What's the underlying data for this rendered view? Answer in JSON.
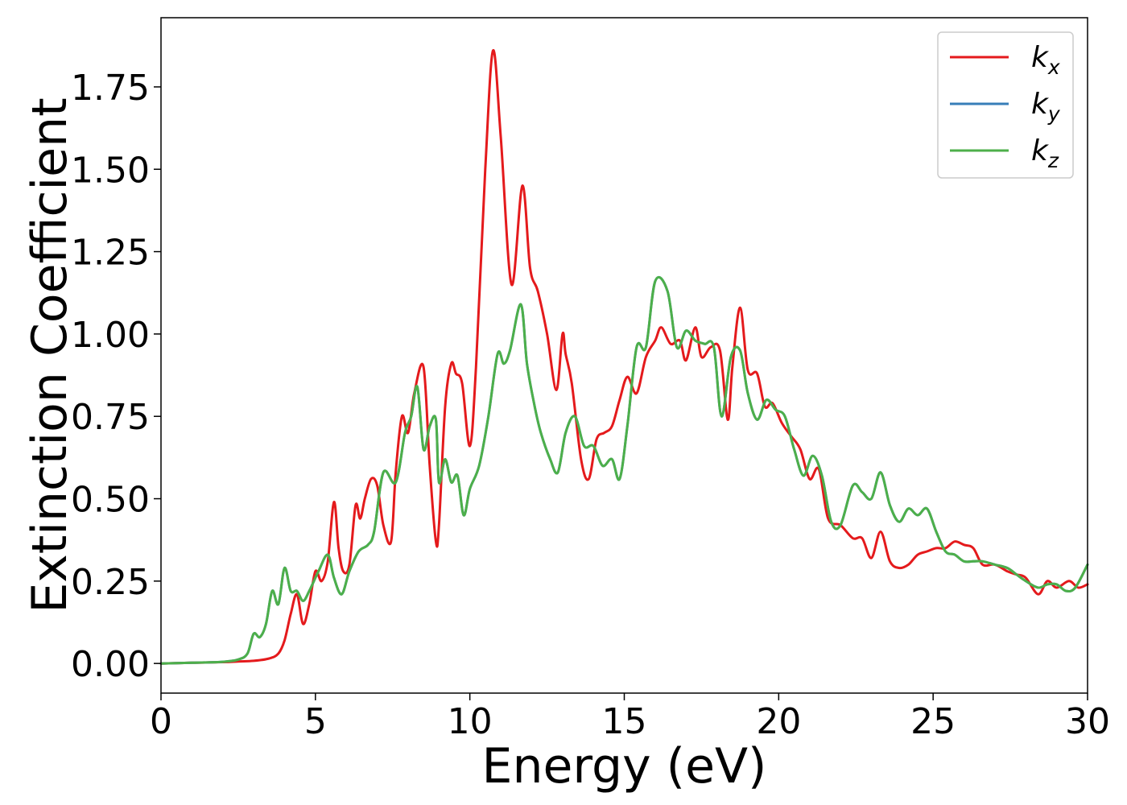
{
  "chart_data": {
    "type": "line",
    "title": "",
    "xlabel": "Energy (eV)",
    "ylabel": "Extinction Coefficient",
    "xlim": [
      0,
      30
    ],
    "ylim": [
      -0.09,
      1.96
    ],
    "xticks": [
      0,
      5,
      10,
      15,
      20,
      25,
      30
    ],
    "xtick_labels": [
      "0",
      "5",
      "10",
      "15",
      "20",
      "25",
      "30"
    ],
    "yticks": [
      0.0,
      0.25,
      0.5,
      0.75,
      1.0,
      1.25,
      1.5,
      1.75
    ],
    "ytick_labels": [
      "0.00",
      "0.25",
      "0.50",
      "0.75",
      "1.00",
      "1.25",
      "1.50",
      "1.75"
    ],
    "grid": false,
    "legend_position": "top-right",
    "series": [
      {
        "name": "k_x",
        "label_base": "k",
        "label_sub": "x",
        "color": "#e41a1c",
        "x": [
          0,
          1,
          2,
          2.5,
          3,
          3.5,
          3.8,
          4.0,
          4.2,
          4.4,
          4.6,
          4.8,
          5.0,
          5.2,
          5.4,
          5.6,
          5.75,
          5.9,
          6.1,
          6.3,
          6.45,
          6.6,
          6.8,
          7.0,
          7.2,
          7.45,
          7.6,
          7.8,
          8.0,
          8.2,
          8.5,
          8.7,
          8.9,
          9.0,
          9.2,
          9.4,
          9.55,
          9.75,
          10.0,
          10.2,
          10.5,
          10.75,
          11.0,
          11.35,
          11.7,
          11.95,
          12.2,
          12.5,
          12.8,
          13.0,
          13.1,
          13.3,
          13.6,
          13.85,
          14.1,
          14.35,
          14.6,
          14.85,
          15.1,
          15.4,
          15.7,
          16.0,
          16.2,
          16.5,
          16.8,
          17.0,
          17.3,
          17.5,
          17.8,
          18.1,
          18.35,
          18.5,
          18.75,
          19.0,
          19.3,
          19.55,
          19.8,
          20.1,
          20.4,
          20.7,
          21.0,
          21.3,
          21.6,
          22.0,
          22.4,
          22.7,
          23.0,
          23.3,
          23.6,
          23.9,
          24.2,
          24.5,
          24.8,
          25.1,
          25.4,
          25.7,
          26.0,
          26.3,
          26.6,
          27.0,
          27.4,
          27.7,
          28.0,
          28.4,
          28.7,
          29.0,
          29.4,
          29.7,
          30.0
        ],
        "y": [
          0.0,
          0.002,
          0.004,
          0.006,
          0.008,
          0.015,
          0.03,
          0.07,
          0.15,
          0.21,
          0.12,
          0.18,
          0.28,
          0.25,
          0.31,
          0.49,
          0.35,
          0.28,
          0.3,
          0.48,
          0.44,
          0.5,
          0.56,
          0.54,
          0.42,
          0.37,
          0.58,
          0.75,
          0.7,
          0.82,
          0.9,
          0.6,
          0.37,
          0.42,
          0.78,
          0.91,
          0.88,
          0.85,
          0.66,
          0.9,
          1.5,
          1.86,
          1.6,
          1.15,
          1.45,
          1.2,
          1.13,
          1.0,
          0.83,
          1.0,
          0.94,
          0.85,
          0.62,
          0.56,
          0.68,
          0.7,
          0.72,
          0.8,
          0.87,
          0.82,
          0.93,
          0.98,
          1.02,
          0.97,
          0.98,
          0.92,
          1.02,
          0.93,
          0.96,
          0.95,
          0.74,
          0.9,
          1.08,
          0.89,
          0.88,
          0.78,
          0.79,
          0.73,
          0.69,
          0.65,
          0.56,
          0.59,
          0.44,
          0.42,
          0.38,
          0.38,
          0.32,
          0.4,
          0.31,
          0.29,
          0.3,
          0.33,
          0.34,
          0.35,
          0.35,
          0.37,
          0.36,
          0.35,
          0.3,
          0.3,
          0.28,
          0.27,
          0.26,
          0.21,
          0.25,
          0.23,
          0.25,
          0.23,
          0.24
        ]
      },
      {
        "name": "k_y",
        "label_base": "k",
        "label_sub": "y",
        "color": "#377eb8",
        "x": [
          0,
          1,
          2,
          2.5,
          2.8,
          3.0,
          3.2,
          3.4,
          3.6,
          3.8,
          4.0,
          4.2,
          4.4,
          4.6,
          4.8,
          5.1,
          5.4,
          5.6,
          5.85,
          6.1,
          6.4,
          6.7,
          6.9,
          7.2,
          7.6,
          7.9,
          8.1,
          8.3,
          8.5,
          8.7,
          8.9,
          9.0,
          9.2,
          9.4,
          9.6,
          9.8,
          10.0,
          10.3,
          10.6,
          10.9,
          11.1,
          11.3,
          11.65,
          11.85,
          12.1,
          12.3,
          12.6,
          12.85,
          13.1,
          13.4,
          13.7,
          14.0,
          14.3,
          14.6,
          14.85,
          15.1,
          15.4,
          15.7,
          16.0,
          16.4,
          16.7,
          17.0,
          17.3,
          17.6,
          17.9,
          18.15,
          18.45,
          18.75,
          19.0,
          19.3,
          19.6,
          19.9,
          20.2,
          20.5,
          20.8,
          21.1,
          21.4,
          21.7,
          22.0,
          22.4,
          22.7,
          23.0,
          23.3,
          23.6,
          23.9,
          24.2,
          24.5,
          24.8,
          25.1,
          25.4,
          25.7,
          26.0,
          26.3,
          26.6,
          27.0,
          27.4,
          27.7,
          28.0,
          28.4,
          28.7,
          29.0,
          29.3,
          29.6,
          30.0
        ],
        "y": [
          0.0,
          0.002,
          0.005,
          0.012,
          0.03,
          0.09,
          0.08,
          0.12,
          0.22,
          0.18,
          0.29,
          0.22,
          0.22,
          0.19,
          0.22,
          0.28,
          0.33,
          0.26,
          0.21,
          0.28,
          0.34,
          0.36,
          0.4,
          0.58,
          0.55,
          0.7,
          0.75,
          0.84,
          0.65,
          0.72,
          0.74,
          0.55,
          0.62,
          0.55,
          0.57,
          0.45,
          0.53,
          0.6,
          0.75,
          0.94,
          0.91,
          0.95,
          1.09,
          0.91,
          0.78,
          0.7,
          0.62,
          0.58,
          0.7,
          0.75,
          0.66,
          0.66,
          0.6,
          0.62,
          0.56,
          0.72,
          0.96,
          0.96,
          1.16,
          1.13,
          0.96,
          1.01,
          0.98,
          0.97,
          0.96,
          0.75,
          0.93,
          0.95,
          0.82,
          0.74,
          0.8,
          0.77,
          0.75,
          0.65,
          0.57,
          0.63,
          0.57,
          0.43,
          0.42,
          0.54,
          0.52,
          0.5,
          0.58,
          0.48,
          0.43,
          0.47,
          0.45,
          0.47,
          0.4,
          0.34,
          0.33,
          0.31,
          0.31,
          0.31,
          0.3,
          0.29,
          0.27,
          0.25,
          0.23,
          0.24,
          0.24,
          0.22,
          0.23,
          0.3
        ]
      },
      {
        "name": "k_z",
        "label_base": "k",
        "label_sub": "z",
        "color": "#4daf4a",
        "x": [
          0,
          1,
          2,
          2.5,
          2.8,
          3.0,
          3.2,
          3.4,
          3.6,
          3.8,
          4.0,
          4.2,
          4.4,
          4.6,
          4.8,
          5.1,
          5.4,
          5.6,
          5.85,
          6.1,
          6.4,
          6.7,
          6.9,
          7.2,
          7.6,
          7.9,
          8.1,
          8.3,
          8.5,
          8.7,
          8.9,
          9.0,
          9.2,
          9.4,
          9.6,
          9.8,
          10.0,
          10.3,
          10.6,
          10.9,
          11.1,
          11.3,
          11.65,
          11.85,
          12.1,
          12.3,
          12.6,
          12.85,
          13.1,
          13.4,
          13.7,
          14.0,
          14.3,
          14.6,
          14.85,
          15.1,
          15.4,
          15.7,
          16.0,
          16.4,
          16.7,
          17.0,
          17.3,
          17.6,
          17.9,
          18.15,
          18.45,
          18.75,
          19.0,
          19.3,
          19.6,
          19.9,
          20.2,
          20.5,
          20.8,
          21.1,
          21.4,
          21.7,
          22.0,
          22.4,
          22.7,
          23.0,
          23.3,
          23.6,
          23.9,
          24.2,
          24.5,
          24.8,
          25.1,
          25.4,
          25.7,
          26.0,
          26.3,
          26.6,
          27.0,
          27.4,
          27.7,
          28.0,
          28.4,
          28.7,
          29.0,
          29.3,
          29.6,
          30.0
        ],
        "y": [
          0.0,
          0.002,
          0.005,
          0.012,
          0.03,
          0.09,
          0.08,
          0.12,
          0.22,
          0.18,
          0.29,
          0.22,
          0.22,
          0.19,
          0.22,
          0.28,
          0.33,
          0.26,
          0.21,
          0.28,
          0.34,
          0.36,
          0.4,
          0.58,
          0.55,
          0.7,
          0.75,
          0.84,
          0.65,
          0.72,
          0.74,
          0.55,
          0.62,
          0.55,
          0.57,
          0.45,
          0.53,
          0.6,
          0.75,
          0.94,
          0.91,
          0.95,
          1.09,
          0.91,
          0.78,
          0.7,
          0.62,
          0.58,
          0.7,
          0.75,
          0.66,
          0.66,
          0.6,
          0.62,
          0.56,
          0.72,
          0.96,
          0.96,
          1.16,
          1.13,
          0.96,
          1.01,
          0.98,
          0.97,
          0.96,
          0.75,
          0.93,
          0.95,
          0.82,
          0.74,
          0.8,
          0.77,
          0.75,
          0.65,
          0.57,
          0.63,
          0.57,
          0.43,
          0.42,
          0.54,
          0.52,
          0.5,
          0.58,
          0.48,
          0.43,
          0.47,
          0.45,
          0.47,
          0.4,
          0.34,
          0.33,
          0.31,
          0.31,
          0.31,
          0.3,
          0.29,
          0.27,
          0.25,
          0.23,
          0.24,
          0.24,
          0.22,
          0.23,
          0.3
        ]
      }
    ]
  }
}
